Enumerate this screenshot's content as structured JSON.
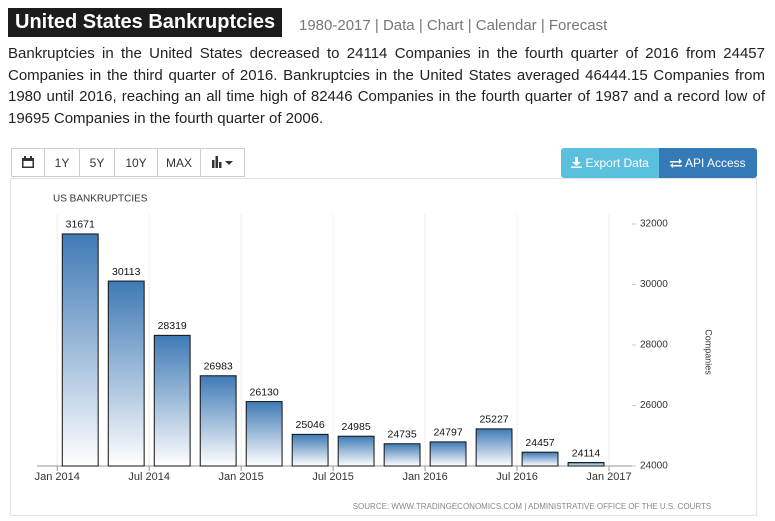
{
  "header": {
    "title": "United States Bankruptcies",
    "nav": "1980-2017 | Data | Chart | Calendar | Forecast"
  },
  "description": "Bankruptcies in the United States decreased to 24114 Companies in the fourth quarter of 2016 from 24457 Companies in the third quarter of 2016. Bankruptcies in the United States averaged 46444.15 Companies from 1980 until 2016, reaching an all time high of 82446 Companies in the fourth quarter of 1987 and a record low of 19695 Companies in the fourth quarter of 2006.",
  "toolbar": {
    "ranges": [
      "1Y",
      "5Y",
      "10Y",
      "MAX"
    ],
    "export": "Export Data",
    "api": "API Access"
  },
  "chart_data": {
    "type": "bar",
    "title": "US BANKRUPTCIES",
    "y_label": "Companies",
    "x": [
      2014.125,
      2014.375,
      2014.625,
      2014.875,
      2015.125,
      2015.375,
      2015.625,
      2015.875,
      2016.125,
      2016.375,
      2016.625,
      2016.875
    ],
    "values": [
      31671,
      30113,
      28319,
      26983,
      26130,
      25046,
      24985,
      24735,
      24797,
      25227,
      24457,
      24114
    ],
    "color": "#3f7ab6",
    "xlim": [
      2013.89,
      2017.125
    ],
    "xticks": [
      {
        "value": 2014,
        "label": "Jan 2014"
      },
      {
        "value": 2014.5,
        "label": "Jul 2014"
      },
      {
        "value": 2015,
        "label": "Jan 2015"
      },
      {
        "value": 2015.5,
        "label": "Jul 2015"
      },
      {
        "value": 2016,
        "label": "Jan 2016"
      },
      {
        "value": 2016.5,
        "label": "Jul 2016"
      },
      {
        "value": 2017,
        "label": "Jan 2017"
      }
    ],
    "ylim": [
      24000,
      32000
    ],
    "yticks": [
      24000,
      26000,
      28000,
      30000,
      32000
    ],
    "grid": true,
    "source": "SOURCE: WWW.TRADINGECONOMICS.COM | ADMINISTRATIVE OFFICE OF THE U.S. COURTS"
  }
}
